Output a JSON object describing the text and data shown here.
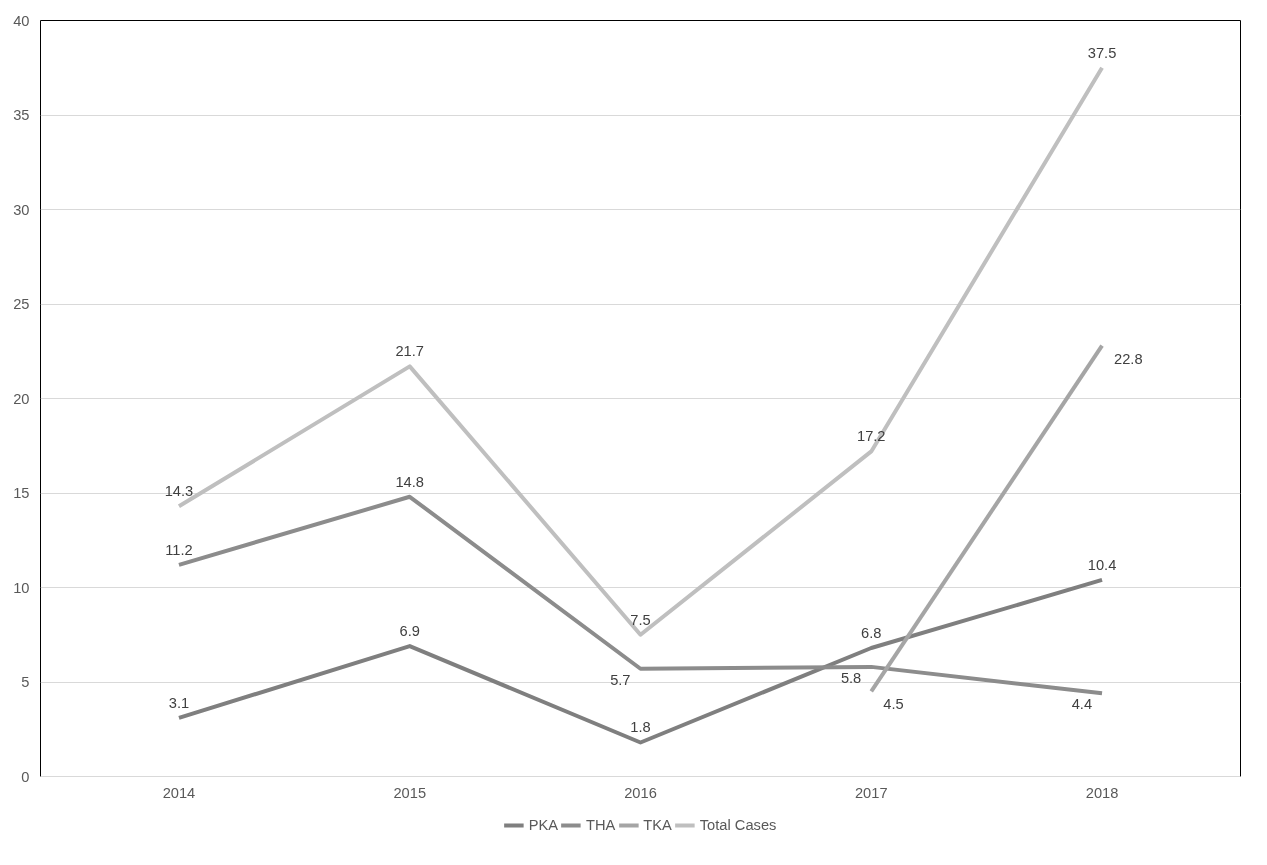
{
  "chart_data": {
    "type": "line",
    "categories": [
      "2014",
      "2015",
      "2016",
      "2017",
      "2018"
    ],
    "series": [
      {
        "name": "PKA",
        "color": "#7f7f7f",
        "values": [
          3.1,
          6.9,
          1.8,
          6.8,
          10.4
        ]
      },
      {
        "name": "THA",
        "color": "#8c8c8c",
        "values": [
          11.2,
          14.8,
          5.7,
          5.8,
          4.4
        ]
      },
      {
        "name": "TKA",
        "color": "#a5a5a5",
        "values": [
          null,
          null,
          null,
          4.5,
          22.8
        ]
      },
      {
        "name": "Total Cases",
        "color": "#bfbfbf",
        "values": [
          14.3,
          21.7,
          7.5,
          17.2,
          37.5
        ]
      }
    ],
    "ylim": [
      0,
      40
    ],
    "yticks": [
      0,
      5,
      10,
      15,
      20,
      25,
      30,
      35,
      40
    ],
    "grid": "y",
    "legend": "bottom",
    "data_labels": true,
    "marker": "none",
    "line_style": "solid"
  }
}
